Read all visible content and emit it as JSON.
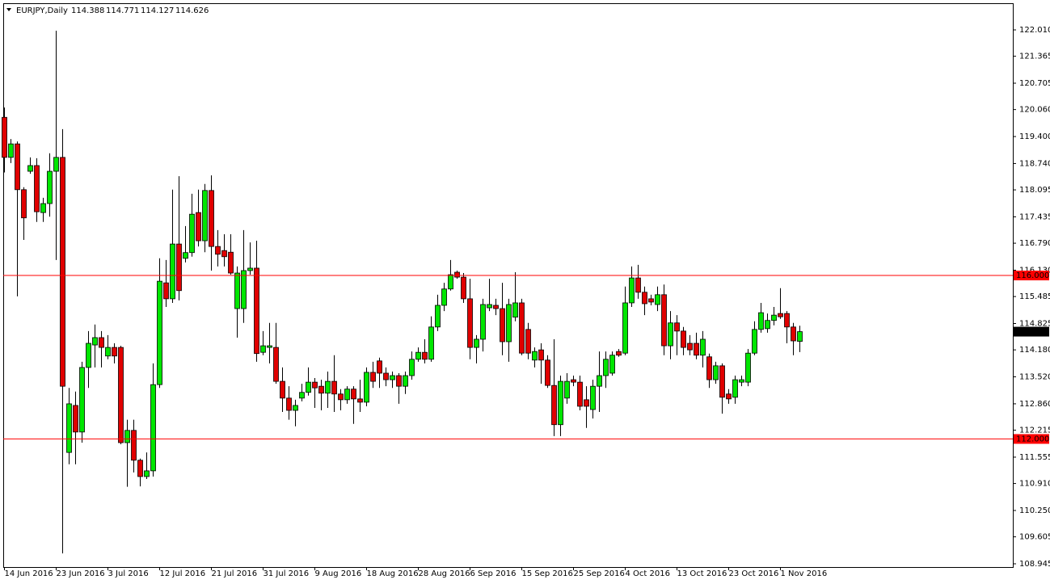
{
  "chart_data": {
    "type": "candlestick",
    "symbol": "EURJPY,Daily",
    "x": [
      "14 Jun 2016",
      null,
      null,
      null,
      null,
      null,
      null,
      null,
      "23 Jun 2016",
      null,
      null,
      null,
      null,
      null,
      null,
      null,
      "3 Jul 2016",
      null,
      null,
      null,
      null,
      null,
      null,
      null,
      "12 Jul 2016",
      null,
      null,
      null,
      null,
      null,
      null,
      null,
      "21 Jul 2016",
      null,
      null,
      null,
      null,
      null,
      null,
      null,
      "31 Jul 2016",
      null,
      null,
      null,
      null,
      null,
      null,
      null,
      "9 Aug 2016",
      null,
      null,
      null,
      null,
      null,
      null,
      null,
      "18 Aug 2016",
      null,
      null,
      null,
      null,
      null,
      null,
      null,
      "28 Aug 2016",
      null,
      null,
      null,
      null,
      null,
      null,
      null,
      "6 Sep 2016",
      null,
      null,
      null,
      null,
      null,
      null,
      null,
      "15 Sep 2016",
      null,
      null,
      null,
      null,
      null,
      null,
      null,
      "25 Sep 2016",
      null,
      null,
      null,
      null,
      null,
      null,
      null,
      "4 Oct 2016",
      null,
      null,
      null,
      null,
      null,
      null,
      null,
      "13 Oct 2016",
      null,
      null,
      null,
      null,
      null,
      null,
      null,
      "23 Oct 2016",
      null,
      null,
      null,
      null,
      null,
      null,
      null,
      "1 Nov 2016",
      null,
      null,
      null
    ],
    "open": [
      119.87,
      118.89,
      119.22,
      118.1,
      118.55,
      118.69,
      117.54,
      117.76,
      118.55,
      118.89,
      111.67,
      112.82,
      112.17,
      113.75,
      114.3,
      114.48,
      114.03,
      114.24,
      114.24,
      111.91,
      112.21,
      111.48,
      111.08,
      111.22,
      113.33,
      115.82,
      115.43,
      116.77,
      116.42,
      116.56,
      117.54,
      116.85,
      118.08,
      116.71,
      116.61,
      116.57,
      115.19,
      115.19,
      116.12,
      116.18,
      114.12,
      114.24,
      114.24,
      113.41,
      113.0,
      112.7,
      113.0,
      113.14,
      113.39,
      113.29,
      113.12,
      113.41,
      113.1,
      112.96,
      113.22,
      112.98,
      112.9,
      113.63,
      113.91,
      113.61,
      113.45,
      113.55,
      113.29,
      113.55,
      113.95,
      114.12,
      113.95,
      114.74,
      115.27,
      115.67,
      116.08,
      115.96,
      115.43,
      114.24,
      114.44,
      115.21,
      115.27,
      115.19,
      114.38,
      114.98,
      115.33,
      114.68,
      113.93,
      114.18,
      113.93,
      113.31,
      112.35,
      113.0,
      113.45,
      113.39,
      112.96,
      112.72,
      113.29,
      113.55,
      113.61,
      114.14,
      114.1,
      115.33,
      115.94,
      115.59,
      115.43,
      115.29,
      115.53,
      114.28,
      114.84,
      114.64,
      114.34,
      114.34,
      114.05,
      114.01,
      113.45,
      113.79,
      113.1,
      113.02,
      113.39,
      113.39,
      114.1,
      114.68,
      114.7,
      114.9,
      115.07,
      115.07,
      114.74,
      114.388
    ],
    "high": [
      120.11,
      119.34,
      119.28,
      118.16,
      118.89,
      118.87,
      117.9,
      118.99,
      121.99,
      119.58,
      113.25,
      113.16,
      113.89,
      114.64,
      114.8,
      114.64,
      114.54,
      114.34,
      114.28,
      112.47,
      112.47,
      111.52,
      111.67,
      113.85,
      116.42,
      116.38,
      118.1,
      118.43,
      117.21,
      118.0,
      118.1,
      118.24,
      118.45,
      117.11,
      117.01,
      117.01,
      116.22,
      117.11,
      116.81,
      116.85,
      114.64,
      114.84,
      114.84,
      113.75,
      113.29,
      112.96,
      113.35,
      113.75,
      113.49,
      113.45,
      113.65,
      114.05,
      113.22,
      113.29,
      113.29,
      113.45,
      113.75,
      113.89,
      113.99,
      113.75,
      113.65,
      113.61,
      113.65,
      114.14,
      114.24,
      114.44,
      115.0,
      115.53,
      115.82,
      116.38,
      116.12,
      116.06,
      115.92,
      114.54,
      115.43,
      115.92,
      115.43,
      115.82,
      115.43,
      116.08,
      115.43,
      114.84,
      114.24,
      114.34,
      114.05,
      114.44,
      113.55,
      113.61,
      113.55,
      113.55,
      113.29,
      113.45,
      114.14,
      114.14,
      114.14,
      114.2,
      115.73,
      116.22,
      116.26,
      115.73,
      115.53,
      115.73,
      115.78,
      115.13,
      115.03,
      114.74,
      114.54,
      114.6,
      114.64,
      114.09,
      113.89,
      113.85,
      113.22,
      113.55,
      113.55,
      114.2,
      114.88,
      115.33,
      115.07,
      115.23,
      115.69,
      115.13,
      114.84,
      114.771
    ],
    "low": [
      118.52,
      118.75,
      115.49,
      116.87,
      118.49,
      117.31,
      117.31,
      117.44,
      116.38,
      109.2,
      111.38,
      111.38,
      111.91,
      113.25,
      113.75,
      113.75,
      113.95,
      113.85,
      111.87,
      110.83,
      111.18,
      110.84,
      111.02,
      111.08,
      113.25,
      115.23,
      115.33,
      115.39,
      116.32,
      116.46,
      116.71,
      116.57,
      116.12,
      116.22,
      116.22,
      116.02,
      114.48,
      114.84,
      116.02,
      113.89,
      114.05,
      113.85,
      113.35,
      112.66,
      112.47,
      112.31,
      112.92,
      113.06,
      112.76,
      112.7,
      112.76,
      112.66,
      112.7,
      112.86,
      112.37,
      112.66,
      112.8,
      113.25,
      113.25,
      113.29,
      113.25,
      112.86,
      113.1,
      113.45,
      113.89,
      113.85,
      113.89,
      114.64,
      115.13,
      115.63,
      115.92,
      115.33,
      113.95,
      113.85,
      114.14,
      115.13,
      115.03,
      114.05,
      113.89,
      114.88,
      114.05,
      113.95,
      113.75,
      113.35,
      113.25,
      112.07,
      112.07,
      112.86,
      113.29,
      112.7,
      112.27,
      112.5,
      112.66,
      113.25,
      113.55,
      114.01,
      114.05,
      115.23,
      115.43,
      115.03,
      115.27,
      115.13,
      114.05,
      113.95,
      114.05,
      114.05,
      114.05,
      113.95,
      113.75,
      113.25,
      113.35,
      112.62,
      112.86,
      112.86,
      113.29,
      113.29,
      114.05,
      114.6,
      114.6,
      114.78,
      114.94,
      114.34,
      114.05,
      114.127
    ],
    "close": [
      118.89,
      119.22,
      118.1,
      117.41,
      118.69,
      117.56,
      117.76,
      118.55,
      118.89,
      113.29,
      112.86,
      112.17,
      113.75,
      114.34,
      114.48,
      114.24,
      114.24,
      114.03,
      111.91,
      112.21,
      111.48,
      111.08,
      111.22,
      113.33,
      115.86,
      115.43,
      116.77,
      115.63,
      116.56,
      117.5,
      116.85,
      118.08,
      116.71,
      116.52,
      116.46,
      116.06,
      116.06,
      116.12,
      116.18,
      114.09,
      114.28,
      114.28,
      113.41,
      113.0,
      112.7,
      112.82,
      113.14,
      113.39,
      113.25,
      113.12,
      113.41,
      113.1,
      112.96,
      113.22,
      112.98,
      112.9,
      113.63,
      113.41,
      113.61,
      113.45,
      113.55,
      113.29,
      113.55,
      113.95,
      114.12,
      113.95,
      114.74,
      115.27,
      115.67,
      116.02,
      115.96,
      115.43,
      114.24,
      114.44,
      115.29,
      115.29,
      115.19,
      114.38,
      115.29,
      115.33,
      114.1,
      114.1,
      114.14,
      113.93,
      113.31,
      112.35,
      113.41,
      113.41,
      113.39,
      112.8,
      112.8,
      113.29,
      113.55,
      113.95,
      114.05,
      114.05,
      115.33,
      115.94,
      115.59,
      115.31,
      115.35,
      115.53,
      114.28,
      114.84,
      114.64,
      114.24,
      114.18,
      114.05,
      114.44,
      113.45,
      113.79,
      113.02,
      112.98,
      113.45,
      113.45,
      114.1,
      114.68,
      115.09,
      114.9,
      115.03,
      114.99,
      114.74,
      114.4,
      114.626
    ],
    "up_color": "#00e600",
    "down_color": "#e00000",
    "ylim": [
      108.866,
      122.662
    ],
    "yticks": [
      {
        "value": 108.945,
        "label": "108.945"
      },
      {
        "value": 109.605,
        "label": "109.605"
      },
      {
        "value": 110.25,
        "label": "110.250"
      },
      {
        "value": 110.91,
        "label": "110.910"
      },
      {
        "value": 111.555,
        "label": "111.555"
      },
      {
        "value": 112.215,
        "label": "112.215"
      },
      {
        "value": 112.86,
        "label": "112.860"
      },
      {
        "value": 113.52,
        "label": "113.520"
      },
      {
        "value": 114.18,
        "label": "114.180"
      },
      {
        "value": 114.825,
        "label": "114.825"
      },
      {
        "value": 115.485,
        "label": "115.485"
      },
      {
        "value": 116.13,
        "label": "116.130"
      },
      {
        "value": 116.79,
        "label": "116.790"
      },
      {
        "value": 117.435,
        "label": "117.435"
      },
      {
        "value": 118.095,
        "label": "118.095"
      },
      {
        "value": 118.74,
        "label": "118.740"
      },
      {
        "value": 119.4,
        "label": "119.400"
      },
      {
        "value": 120.06,
        "label": "120.060"
      },
      {
        "value": 120.705,
        "label": "120.705"
      },
      {
        "value": 121.365,
        "label": "121.365"
      },
      {
        "value": 122.01,
        "label": "122.010"
      }
    ],
    "hlines": [
      {
        "value": 116,
        "label": "116.000",
        "color": "#ff0000"
      },
      {
        "value": 112,
        "label": "112.000",
        "color": "#ff0000"
      }
    ]
  }
}
